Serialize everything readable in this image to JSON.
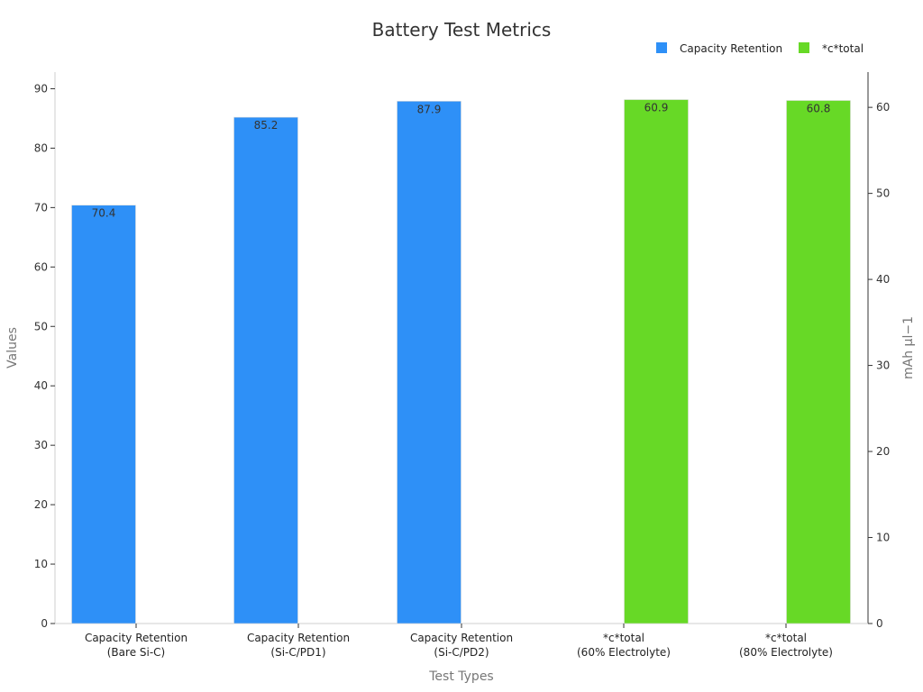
{
  "chart_data": {
    "type": "bar",
    "title": "Battery Test Metrics",
    "xlabel": "Test Types",
    "ylabel": "Values",
    "y2label": "mAh μl−1",
    "categories": [
      "Capacity Retention\n(Bare Si-C)",
      "Capacity Retention\n(Si-C/PD1)",
      "Capacity Retention\n(Si-C/PD2)",
      "*c*total\n(60% Electrolyte)",
      "*c*total\n(80% Electrolyte)"
    ],
    "series": [
      {
        "name": "Capacity Retention",
        "color": "#2e90f7",
        "axis": "left",
        "values": [
          70.4,
          85.2,
          87.9,
          null,
          null
        ],
        "labels": [
          "70.4",
          "85.2",
          "87.9",
          null,
          null
        ]
      },
      {
        "name": "*c*total",
        "color": "#67d926",
        "axis": "right",
        "values": [
          null,
          null,
          null,
          60.9,
          60.8
        ],
        "labels": [
          null,
          null,
          null,
          "60.9",
          "60.8"
        ]
      }
    ],
    "ylim": [
      0,
      92.8
    ],
    "y2lim": [
      0,
      64.1
    ],
    "yticks": [
      0,
      10,
      20,
      30,
      40,
      50,
      60,
      70,
      80,
      90
    ],
    "y2ticks": [
      0,
      10,
      20,
      30,
      40,
      50,
      60
    ],
    "grid": false,
    "legend_position": "top-right"
  }
}
